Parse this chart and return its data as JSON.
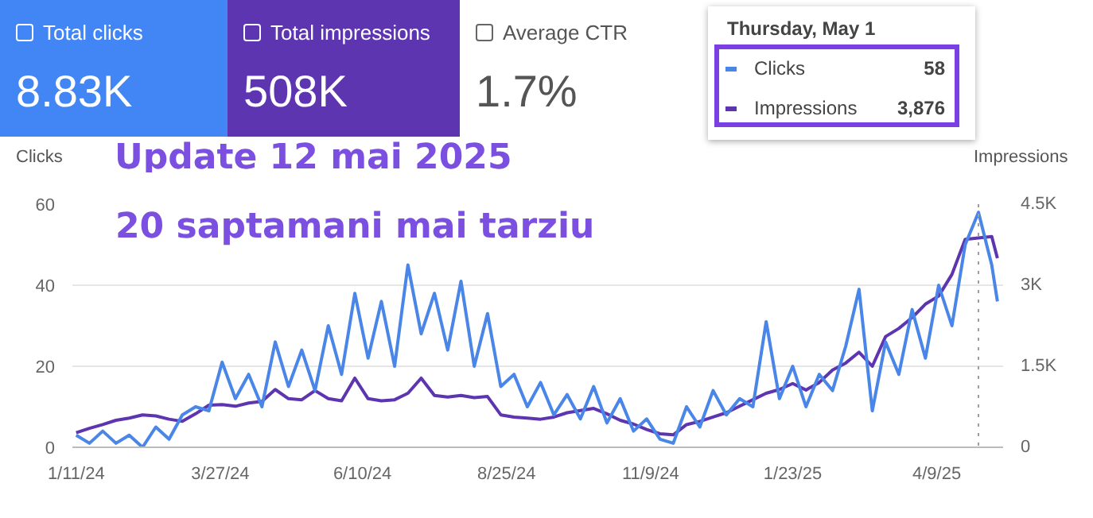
{
  "chart_data": {
    "type": "line",
    "ylabel": "Clicks",
    "y2label": "Impressions",
    "annotations": [
      "Total clicks",
      "8.83K",
      "Total impressions",
      "508K",
      "Average CTR",
      "1.7%",
      "Thursday, May 1",
      "58",
      "3,876",
      "Update 12 mai 2025",
      "20 saptamani mai tarziu"
    ],
    "x": [
      "2024-01-11",
      "2024-01-18",
      "2024-01-25",
      "2024-02-01",
      "2024-02-08",
      "2024-02-15",
      "2024-02-22",
      "2024-02-29",
      "2024-03-07",
      "2024-03-14",
      "2024-03-21",
      "2024-03-28",
      "2024-04-04",
      "2024-04-11",
      "2024-04-18",
      "2024-04-25",
      "2024-05-02",
      "2024-05-09",
      "2024-05-16",
      "2024-05-23",
      "2024-05-30",
      "2024-06-06",
      "2024-06-13",
      "2024-06-20",
      "2024-06-27",
      "2024-07-04",
      "2024-07-11",
      "2024-07-18",
      "2024-07-25",
      "2024-08-01",
      "2024-08-08",
      "2024-08-15",
      "2024-08-22",
      "2024-08-29",
      "2024-09-05",
      "2024-09-12",
      "2024-09-19",
      "2024-09-26",
      "2024-10-03",
      "2024-10-10",
      "2024-10-17",
      "2024-10-24",
      "2024-10-31",
      "2024-11-07",
      "2024-11-14",
      "2024-11-21",
      "2024-11-28",
      "2024-12-05",
      "2024-12-12",
      "2024-12-19",
      "2024-12-26",
      "2025-01-02",
      "2025-01-09",
      "2025-01-16",
      "2025-01-23",
      "2025-01-30",
      "2025-02-06",
      "2025-02-13",
      "2025-02-20",
      "2025-02-27",
      "2025-03-06",
      "2025-03-13",
      "2025-03-20",
      "2025-03-27",
      "2025-04-03",
      "2025-04-10",
      "2025-04-17",
      "2025-04-24",
      "2025-05-01",
      "2025-05-08",
      "2025-05-11"
    ],
    "series": [
      {
        "name": "Clicks",
        "color": "#4a86e8",
        "values": [
          3,
          1,
          4,
          1,
          3,
          0,
          5,
          2,
          8,
          10,
          9,
          21,
          12,
          18,
          10,
          26,
          15,
          24,
          14,
          30,
          18,
          38,
          22,
          36,
          20,
          45,
          28,
          38,
          24,
          41,
          20,
          33,
          15,
          18,
          10,
          16,
          8,
          13,
          7,
          15,
          6,
          12,
          4,
          7,
          2,
          1,
          10,
          5,
          14,
          8,
          12,
          10,
          31,
          12,
          20,
          10,
          18,
          14,
          25,
          39,
          9,
          26,
          18,
          34,
          22,
          40,
          30,
          50,
          58,
          45,
          36
        ]
      },
      {
        "name": "Impressions",
        "color": "#5e35b1",
        "axis": "y2",
        "values": [
          270,
          350,
          420,
          500,
          540,
          600,
          580,
          520,
          480,
          620,
          780,
          790,
          760,
          820,
          850,
          1070,
          900,
          880,
          1050,
          900,
          860,
          1280,
          900,
          860,
          880,
          1000,
          1280,
          960,
          930,
          960,
          920,
          940,
          600,
          560,
          540,
          520,
          560,
          640,
          680,
          720,
          620,
          500,
          430,
          330,
          250,
          230,
          420,
          480,
          560,
          640,
          760,
          880,
          1000,
          1070,
          1180,
          1060,
          1200,
          1430,
          1560,
          1760,
          1500,
          2050,
          2200,
          2400,
          2650,
          2800,
          3200,
          3850,
          3876,
          3900,
          3500
        ]
      }
    ],
    "xlim": [
      "2024-01-09",
      "2025-05-14"
    ],
    "xticks": [
      {
        "value": "2024-01-11",
        "label": "1/11/24"
      },
      {
        "value": "2024-03-27",
        "label": "3/27/24"
      },
      {
        "value": "2024-06-10",
        "label": "6/10/24"
      },
      {
        "value": "2024-08-25",
        "label": "8/25/24"
      },
      {
        "value": "2024-11-09",
        "label": "11/9/24"
      },
      {
        "value": "2025-01-23",
        "label": "1/23/25"
      },
      {
        "value": "2025-04-09",
        "label": "4/9/25"
      }
    ],
    "ylim": [
      0,
      60
    ],
    "yticks": [
      0,
      20,
      40,
      60
    ],
    "y2lim": [
      0,
      4500
    ],
    "y2ticks": [
      0,
      {
        "value": 1500,
        "label": "1.5K"
      },
      {
        "value": 3000,
        "label": "3K"
      },
      {
        "value": 4500,
        "label": "4.5K"
      }
    ],
    "ref_lines": [
      {
        "axis": "x",
        "value": "2025-05-01",
        "color": "#9e9e9e",
        "line_style": "dotted"
      }
    ],
    "grid": "y",
    "legend": "top right"
  }
}
